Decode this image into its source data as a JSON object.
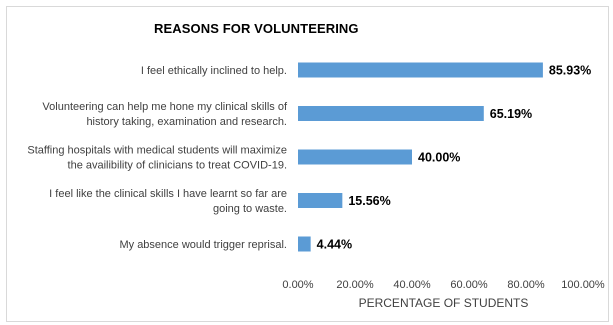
{
  "chart_data": {
    "type": "bar",
    "orientation": "horizontal",
    "title": "REASONS FOR VOLUNTEERING",
    "xlabel": "PERCENTAGE OF STUDENTS",
    "ylabel": "",
    "categories": [
      [
        "I feel ethically inclined to help."
      ],
      [
        "Volunteering can help me hone my clinical skills of",
        "history taking, examination and research."
      ],
      [
        "Staffing hospitals with medical students will maximize",
        "the availibility of clinicians to treat COVID-19."
      ],
      [
        "I feel like the clinical skills I have learnt so far are",
        "going to waste."
      ],
      [
        "My absence would trigger reprisal."
      ]
    ],
    "values": [
      85.93,
      65.19,
      40.0,
      15.56,
      4.44
    ],
    "value_labels": [
      "85.93%",
      "65.19%",
      "40.00%",
      "15.56%",
      "4.44%"
    ],
    "xlim": [
      0,
      100
    ],
    "xticks": [
      0,
      20,
      40,
      60,
      80,
      100
    ],
    "xtick_labels": [
      "0.00%",
      "20.00%",
      "40.00%",
      "60.00%",
      "80.00%",
      "100.00%"
    ],
    "grid": false,
    "legend": "none",
    "bar_color": "#5b9bd5"
  }
}
